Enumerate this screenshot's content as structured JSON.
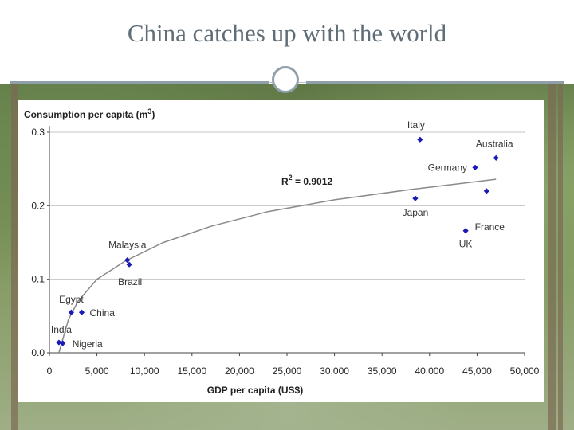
{
  "slide": {
    "title": "China catches up with the world"
  },
  "chart_data": {
    "type": "scatter",
    "title": "Consumption per capita (m",
    "title_superscript": "3",
    "title_suffix": ")",
    "xlabel": "GDP per capita (US$)",
    "ylabel": "",
    "xlim": [
      0,
      50000
    ],
    "ylim": [
      0,
      0.3
    ],
    "x_ticks": [
      0,
      5000,
      10000,
      15000,
      20000,
      25000,
      30000,
      35000,
      40000,
      45000,
      50000
    ],
    "x_tick_labels": [
      "0",
      "5,000",
      "10,000",
      "15,000",
      "20,000",
      "25,000",
      "30,000",
      "35,000",
      "40,000",
      "45,000",
      "50,000"
    ],
    "y_ticks": [
      0,
      0.1,
      0.2,
      0.3
    ],
    "y_tick_labels": [
      "0.0",
      "0.1",
      "0.2",
      "0.3"
    ],
    "grid": "horizontal",
    "marker_color": "#1a1ab8",
    "points": [
      {
        "name": "Italy",
        "x": 39000,
        "y": 0.29
      },
      {
        "name": "Australia",
        "x": 47000,
        "y": 0.265
      },
      {
        "name": "Germany",
        "x": 44800,
        "y": 0.252
      },
      {
        "name": "Japan",
        "x": 38500,
        "y": 0.21
      },
      {
        "name": "France",
        "x": 46000,
        "y": 0.22
      },
      {
        "name": "UK",
        "x": 43800,
        "y": 0.166
      },
      {
        "name": "Malaysia",
        "x": 8200,
        "y": 0.126
      },
      {
        "name": "Brazil",
        "x": 8400,
        "y": 0.12
      },
      {
        "name": "Egypt",
        "x": 2300,
        "y": 0.055
      },
      {
        "name": "China",
        "x": 3400,
        "y": 0.055
      },
      {
        "name": "India",
        "x": 1000,
        "y": 0.014
      },
      {
        "name": "Nigeria",
        "x": 1400,
        "y": 0.013
      }
    ],
    "trendline": {
      "type": "logarithmic",
      "label_prefix": "R",
      "label_superscript": "2",
      "label_suffix": " = 0.9012",
      "points": [
        [
          1000,
          0.0
        ],
        [
          2000,
          0.045
        ],
        [
          3000,
          0.07
        ],
        [
          5000,
          0.1
        ],
        [
          8000,
          0.125
        ],
        [
          12000,
          0.15
        ],
        [
          17000,
          0.172
        ],
        [
          23000,
          0.192
        ],
        [
          30000,
          0.208
        ],
        [
          38000,
          0.222
        ],
        [
          47000,
          0.236
        ]
      ]
    }
  }
}
